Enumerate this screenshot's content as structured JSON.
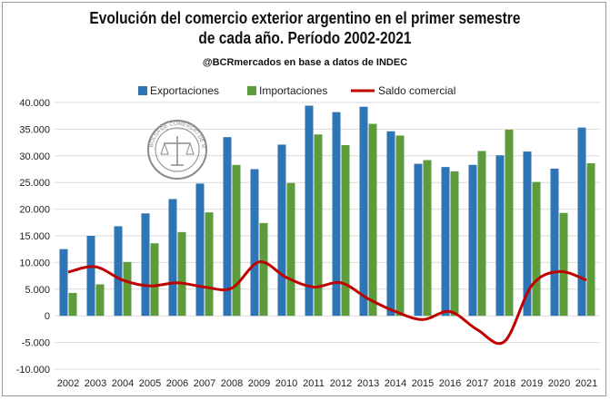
{
  "chart_data": {
    "type": "bar",
    "title": "Evolución del comercio exterior argentino en el primer semestre",
    "title_line2": "de cada año. Período 2002-2021",
    "subtitle": "@BCRmercados en base a datos de INDEC",
    "categories": [
      "2002",
      "2003",
      "2004",
      "2005",
      "2006",
      "2007",
      "2008",
      "2009",
      "2010",
      "2011",
      "2012",
      "2013",
      "2014",
      "2015",
      "2016",
      "2017",
      "2018",
      "2019",
      "2020",
      "2021"
    ],
    "series": [
      {
        "name": "Exportaciones",
        "type": "bar",
        "color": "#2E75B6",
        "values": [
          12500,
          15000,
          16800,
          19200,
          21900,
          24800,
          33500,
          27500,
          32100,
          39400,
          38200,
          39200,
          34600,
          28500,
          27900,
          28300,
          30100,
          30800,
          27600,
          35300
        ]
      },
      {
        "name": "Importaciones",
        "type": "bar",
        "color": "#5E9B3C",
        "values": [
          4300,
          5900,
          10100,
          13600,
          15700,
          19400,
          28300,
          17400,
          24900,
          34000,
          32000,
          36000,
          33800,
          29200,
          27100,
          30900,
          34900,
          25100,
          19300,
          28600
        ]
      },
      {
        "name": "Saldo comercial",
        "type": "line",
        "color": "#C00000",
        "values": [
          8200,
          9200,
          6700,
          5600,
          6200,
          5400,
          5200,
          10100,
          7200,
          5400,
          6200,
          3200,
          800,
          -700,
          800,
          -2600,
          -4800,
          5700,
          8300,
          6700
        ]
      }
    ],
    "yticks": [
      "-10.000",
      "-5.000",
      "0",
      "5.000",
      "10.000",
      "15.000",
      "20.000",
      "25.000",
      "30.000",
      "35.000",
      "40.000"
    ],
    "ylim": [
      -10000,
      40000
    ],
    "grid": true,
    "legend_position": "top"
  },
  "seal": {
    "text": "BOLSA DE COMERCIO DE ROSARIO",
    "icon": "bcr-seal-icon"
  }
}
